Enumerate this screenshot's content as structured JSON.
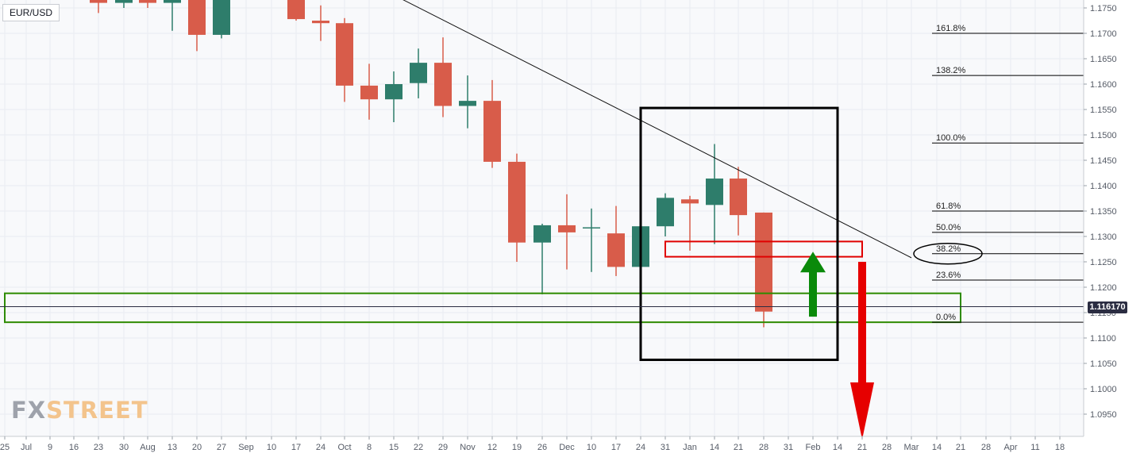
{
  "symbol": "EUR/USD",
  "last_price": "1.116170",
  "watermark": {
    "part1": "FX",
    "part2": "STREET"
  },
  "colors": {
    "up": "#2e7d6b",
    "down": "#d85c4a",
    "green_zone": "#2e8b00",
    "red_zone": "#e00000",
    "arrow_up": "#0a8a0a",
    "arrow_down": "#e60000"
  },
  "chart_data": {
    "type": "candlestick",
    "title": "EUR/USD",
    "ylim": [
      1.09,
      1.177
    ],
    "y_tick_labels": [
      "1.1750",
      "1.1700",
      "1.1650",
      "1.1600",
      "1.1550",
      "1.1500",
      "1.1450",
      "1.1400",
      "1.1350",
      "1.1300",
      "1.1250",
      "1.1200",
      "1.1150",
      "1.1100",
      "1.1050",
      "1.1000",
      "1.0950"
    ],
    "x_tick_labels": [
      "25",
      "Jul",
      "9",
      "16",
      "23",
      "30",
      "Aug",
      "13",
      "20",
      "27",
      "Sep",
      "10",
      "17",
      "24",
      "Oct",
      "8",
      "15",
      "22",
      "29",
      "Nov",
      "12",
      "19",
      "26",
      "Dec",
      "10",
      "17",
      "24",
      "31",
      "Jan",
      "14",
      "21",
      "28",
      "31",
      "Feb",
      "14",
      "21",
      "28",
      "Mar",
      "14",
      "21",
      "28",
      "Apr",
      "11",
      "18"
    ],
    "candles": [
      {
        "date": "Jul 23",
        "open": 1.179,
        "high": 1.18,
        "low": 1.174,
        "close": 1.176
      },
      {
        "date": "Jul 30",
        "open": 1.176,
        "high": 1.179,
        "low": 1.175,
        "close": 1.177
      },
      {
        "date": "Aug 6",
        "open": 1.179,
        "high": 1.18,
        "low": 1.175,
        "close": 1.176
      },
      {
        "date": "Aug 13",
        "open": 1.176,
        "high": 1.179,
        "low": 1.1705,
        "close": 1.178
      },
      {
        "date": "Aug 20",
        "open": 1.178,
        "high": 1.18,
        "low": 1.1665,
        "close": 1.1697
      },
      {
        "date": "Aug 27",
        "open": 1.1697,
        "high": 1.181,
        "low": 1.169,
        "close": 1.18
      },
      {
        "date": "Sep 17",
        "open": 1.18,
        "high": 1.181,
        "low": 1.1725,
        "close": 1.1728
      },
      {
        "date": "Sep 24",
        "open": 1.1725,
        "high": 1.1755,
        "low": 1.1685,
        "close": 1.172
      },
      {
        "date": "Oct 1",
        "open": 1.172,
        "high": 1.173,
        "low": 1.1565,
        "close": 1.1597
      },
      {
        "date": "Oct 8",
        "open": 1.1597,
        "high": 1.164,
        "low": 1.153,
        "close": 1.157
      },
      {
        "date": "Oct 15",
        "open": 1.157,
        "high": 1.1625,
        "low": 1.1525,
        "close": 1.16
      },
      {
        "date": "Oct 22",
        "open": 1.1602,
        "high": 1.167,
        "low": 1.1572,
        "close": 1.1642
      },
      {
        "date": "Oct 29",
        "open": 1.1642,
        "high": 1.1692,
        "low": 1.1535,
        "close": 1.1557
      },
      {
        "date": "Nov 5",
        "open": 1.1557,
        "high": 1.1617,
        "low": 1.1513,
        "close": 1.1567
      },
      {
        "date": "Nov 12",
        "open": 1.1567,
        "high": 1.1608,
        "low": 1.1435,
        "close": 1.1447
      },
      {
        "date": "Nov 19",
        "open": 1.1447,
        "high": 1.1463,
        "low": 1.125,
        "close": 1.1288
      },
      {
        "date": "Nov 26",
        "open": 1.1288,
        "high": 1.1325,
        "low": 1.1186,
        "close": 1.1322
      },
      {
        "date": "Dec 3",
        "open": 1.1322,
        "high": 1.1383,
        "low": 1.1235,
        "close": 1.1308
      },
      {
        "date": "Dec 10",
        "open": 1.1318,
        "high": 1.1355,
        "low": 1.123,
        "close": 1.1318
      },
      {
        "date": "Dec 17",
        "open": 1.1306,
        "high": 1.136,
        "low": 1.1222,
        "close": 1.124
      },
      {
        "date": "Dec 24",
        "open": 1.124,
        "high": 1.132,
        "low": 1.124,
        "close": 1.132
      },
      {
        "date": "Dec 31",
        "open": 1.132,
        "high": 1.1385,
        "low": 1.13,
        "close": 1.1376
      },
      {
        "date": "Jan 7",
        "open": 1.1373,
        "high": 1.138,
        "low": 1.1272,
        "close": 1.1365
      },
      {
        "date": "Jan 14",
        "open": 1.1362,
        "high": 1.1482,
        "low": 1.1285,
        "close": 1.1414
      },
      {
        "date": "Jan 21",
        "open": 1.1414,
        "high": 1.1437,
        "low": 1.1302,
        "close": 1.1342
      },
      {
        "date": "Jan 28",
        "open": 1.1347,
        "high": 1.1347,
        "low": 1.1121,
        "close": 1.1152
      }
    ],
    "last_price_value": 1.11617,
    "fibonacci": [
      {
        "label": "161.8%",
        "level": 1.17
      },
      {
        "label": "138.2%",
        "level": 1.1617
      },
      {
        "label": "100.0%",
        "level": 1.1484
      },
      {
        "label": "61.8%",
        "level": 1.135
      },
      {
        "label": "50.0%",
        "level": 1.1308
      },
      {
        "label": "38.2%",
        "level": 1.1266
      },
      {
        "label": "23.6%",
        "level": 1.1214
      },
      {
        "label": "0.0%",
        "level": 1.1131
      }
    ],
    "trendline": [
      {
        "date": "Oct 8",
        "price": 1.18
      },
      {
        "date": "Mar 7",
        "price": 1.1258
      }
    ],
    "zones": [
      {
        "kind": "support",
        "color": "green",
        "from_date": "Jun 25",
        "to_date": "Mar 21",
        "low": 1.1131,
        "high": 1.1188
      },
      {
        "kind": "resistance",
        "color": "red",
        "from_date": "Dec 31",
        "to_date": "Feb 21",
        "low": 1.126,
        "high": 1.129
      },
      {
        "kind": "focus-box",
        "color": "black",
        "from_date": "Dec 24",
        "to_date": "Feb 14",
        "low": 1.1057,
        "high": 1.1553
      }
    ],
    "arrows": [
      {
        "direction": "up",
        "color": "green",
        "date": "Feb 1",
        "from": 1.1142,
        "to": 1.127
      },
      {
        "direction": "down",
        "color": "red",
        "date": "Feb 21",
        "from": 1.125,
        "to": 1.09
      }
    ],
    "highlighted_label": "38.2%"
  }
}
